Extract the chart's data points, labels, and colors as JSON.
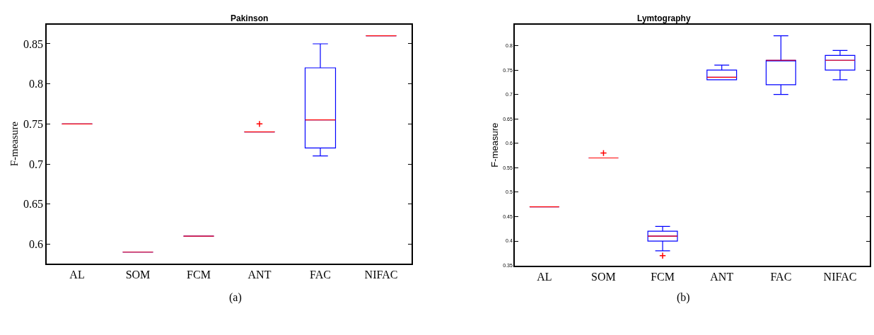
{
  "chart_data": [
    {
      "type": "box",
      "title": "Pakinson",
      "ylabel": "F-measure",
      "categories": [
        "AL",
        "SOM",
        "FCM",
        "ANT",
        "FAC",
        "NIFAC"
      ],
      "ylim": [
        0.576,
        0.874
      ],
      "yticks": [
        0.6,
        0.65,
        0.7,
        0.75,
        0.8,
        0.85
      ],
      "annotations": [
        "(a)"
      ],
      "series": [
        {
          "color": "#0000ff",
          "boxes": [
            {
              "low": 0.75,
              "q1": 0.75,
              "median": 0.75,
              "q3": 0.75,
              "high": 0.75
            },
            {
              "low": 0.59,
              "q1": 0.59,
              "median": 0.59,
              "q3": 0.59,
              "high": 0.59
            },
            {
              "low": 0.61,
              "q1": 0.61,
              "median": 0.61,
              "q3": 0.61,
              "high": 0.61
            },
            {
              "low": 0.74,
              "q1": 0.74,
              "median": 0.74,
              "q3": 0.74,
              "high": 0.74,
              "outliers": [
                0.75
              ]
            },
            {
              "low": 0.71,
              "q1": 0.72,
              "median": 0.755,
              "q3": 0.82,
              "high": 0.85
            },
            {
              "low": 0.86,
              "q1": 0.86,
              "median": 0.86,
              "q3": 0.86,
              "high": 0.86
            }
          ]
        }
      ]
    },
    {
      "type": "box",
      "title": "Lymtography",
      "ylabel": "F-measure",
      "categories": [
        "AL",
        "SOM",
        "FCM",
        "ANT",
        "FAC",
        "NIFAC"
      ],
      "ylim": [
        0.35,
        0.843
      ],
      "yticks": [
        0.35,
        0.4,
        0.45,
        0.5,
        0.55,
        0.6,
        0.65,
        0.7,
        0.75,
        0.8
      ],
      "annotations": [
        "(b)"
      ],
      "series": [
        {
          "color": "#0000ff",
          "boxes": [
            {
              "low": 0.47,
              "q1": 0.47,
              "median": 0.47,
              "q3": 0.47,
              "high": 0.47
            },
            {
              "low": 0.57,
              "q1": 0.57,
              "median": 0.57,
              "q3": 0.57,
              "high": 0.57,
              "outliers": [
                0.58
              ]
            },
            {
              "low": 0.38,
              "q1": 0.4,
              "median": 0.41,
              "q3": 0.42,
              "high": 0.43,
              "outliers": [
                0.37
              ]
            },
            {
              "low": 0.73,
              "q1": 0.73,
              "median": 0.735,
              "q3": 0.75,
              "high": 0.76
            },
            {
              "low": 0.7,
              "q1": 0.72,
              "median": 0.77,
              "q3": 0.77,
              "high": 0.82
            },
            {
              "low": 0.73,
              "q1": 0.75,
              "median": 0.77,
              "q3": 0.78,
              "high": 0.79
            }
          ]
        }
      ]
    }
  ]
}
